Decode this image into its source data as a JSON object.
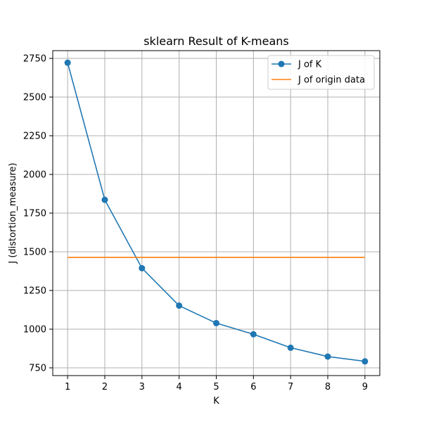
{
  "chart_data": {
    "type": "line",
    "title": "sklearn Result of K-means",
    "xlabel": "K",
    "ylabel": "J (distortion_measure)",
    "xlim": [
      0.6,
      9.4
    ],
    "ylim": [
      700,
      2800
    ],
    "x_ticks": [
      1,
      2,
      3,
      4,
      5,
      6,
      7,
      8,
      9
    ],
    "y_ticks": [
      750,
      1000,
      1250,
      1500,
      1750,
      2000,
      2250,
      2500,
      2750
    ],
    "grid": true,
    "legend_position": "top-right",
    "series": [
      {
        "name": "J of K",
        "color": "#1f77b4",
        "marker": "circle",
        "x": [
          1,
          2,
          3,
          4,
          5,
          6,
          7,
          8,
          9
        ],
        "values": [
          2722,
          1836,
          1394,
          1152,
          1039,
          967,
          880,
          823,
          792
        ]
      },
      {
        "name": "J of origin data",
        "color": "#ff7f0e",
        "marker": "none",
        "x": [
          1,
          9
        ],
        "values": [
          1464,
          1464
        ]
      }
    ]
  }
}
